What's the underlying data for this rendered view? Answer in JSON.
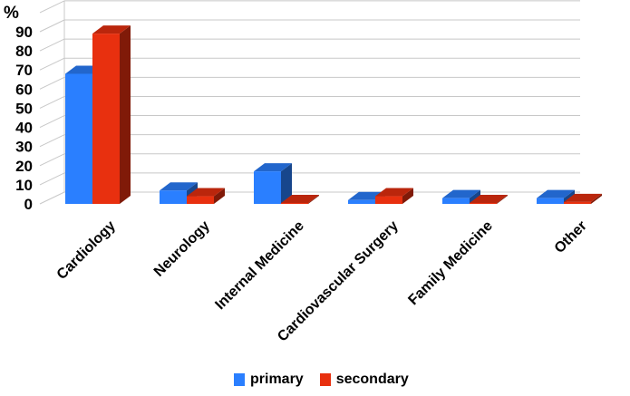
{
  "chart_data": {
    "type": "bar",
    "title": "",
    "unit_label": "%",
    "xlabel": "",
    "ylabel": "",
    "ylim": [
      0,
      100
    ],
    "yticks": [
      0,
      10,
      20,
      30,
      40,
      50,
      60,
      70,
      80,
      90
    ],
    "categories": [
      "Cardiology",
      "Neurology",
      "Internal Medicine",
      "Cardiovascular Surgery",
      "Family Medicine",
      "Other"
    ],
    "series": [
      {
        "name": "primary",
        "color": "#2a7fff",
        "values": [
          68,
          7,
          17,
          2,
          3,
          3
        ]
      },
      {
        "name": "secondary",
        "color": "#e8300f",
        "values": [
          89,
          4,
          0.5,
          4,
          0.5,
          1
        ]
      }
    ],
    "grid": true,
    "legend_position": "bottom"
  }
}
